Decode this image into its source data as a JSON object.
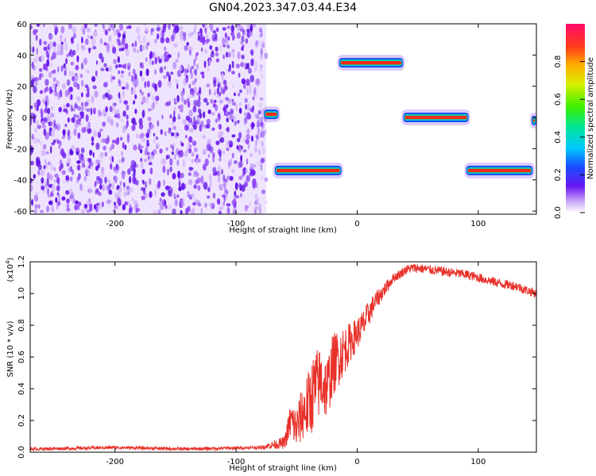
{
  "title": "GN04.2023.347.03.44.E34",
  "colors": {
    "snr_line": "#e8312a",
    "noise": "#7a1cf0",
    "axis": "#000000"
  },
  "chart_data": [
    {
      "type": "heatmap",
      "title": "GN04.2023.347.03.44.E34",
      "xlabel": "Height of straight line (km)",
      "ylabel": "Frequency (Hz)",
      "xlim": [
        -270,
        148
      ],
      "ylim": [
        -62,
        60
      ],
      "xticks": [
        -200,
        -100,
        0,
        100
      ],
      "yticks": [
        -60,
        -40,
        -20,
        0,
        20,
        40,
        60
      ],
      "noise_region_x": [
        -270,
        -75
      ],
      "bands": [
        {
          "x": [
            -77,
            -65
          ],
          "y": 2
        },
        {
          "x": [
            -68,
            -13
          ],
          "y": -34
        },
        {
          "x": [
            -15,
            38
          ],
          "y": 35
        },
        {
          "x": [
            38,
            92
          ],
          "y": 0
        },
        {
          "x": [
            90,
            145
          ],
          "y": -34
        },
        {
          "x": [
            144,
            148
          ],
          "y": -2
        }
      ],
      "colorbar": {
        "label": "Normalized spectral amplitude",
        "range": [
          0,
          1
        ],
        "ticks": [
          "0.0",
          "0.2",
          "0.4",
          "0.6",
          "0.8"
        ]
      }
    },
    {
      "type": "line",
      "xlabel": "Height of straight line (km)",
      "ylabel": "SNR (10 * v/v)",
      "scale_label": "(x10",
      "scale_exp": "4",
      "xlim": [
        -270,
        148
      ],
      "ylim": [
        0,
        1.2
      ],
      "xticks": [
        -200,
        -100,
        0,
        100
      ],
      "yticks": [
        "0.0",
        "0.2",
        "0.4",
        "0.6",
        "0.8",
        "1.0",
        "1.2"
      ],
      "series": [
        {
          "x": [
            -270,
            -230,
            -200,
            -170,
            -140,
            -110,
            -80,
            -60,
            -55,
            -50,
            -45,
            -40,
            -35,
            -30,
            -25,
            -20,
            -15,
            -10,
            -5,
            0,
            5,
            10,
            15,
            20,
            25,
            30,
            35,
            40,
            45,
            50,
            60,
            70,
            80,
            90,
            100,
            110,
            120,
            130,
            140,
            148
          ],
          "y": [
            0.02,
            0.025,
            0.03,
            0.025,
            0.02,
            0.025,
            0.03,
            0.06,
            0.2,
            0.15,
            0.25,
            0.3,
            0.4,
            0.45,
            0.4,
            0.55,
            0.6,
            0.65,
            0.7,
            0.75,
            0.8,
            0.88,
            0.95,
            1.0,
            1.05,
            1.1,
            1.12,
            1.15,
            1.16,
            1.16,
            1.15,
            1.14,
            1.13,
            1.12,
            1.1,
            1.08,
            1.06,
            1.05,
            1.02,
            1.0
          ],
          "noise": [
            0.01,
            0.01,
            0.01,
            0.01,
            0.01,
            0.01,
            0.01,
            0.04,
            0.12,
            0.14,
            0.18,
            0.22,
            0.25,
            0.22,
            0.2,
            0.2,
            0.18,
            0.15,
            0.12,
            0.1,
            0.1,
            0.08,
            0.06,
            0.05,
            0.04,
            0.03,
            0.03,
            0.03,
            0.03,
            0.03,
            0.03,
            0.03,
            0.03,
            0.03,
            0.03,
            0.03,
            0.03,
            0.03,
            0.03,
            0.03
          ]
        }
      ]
    }
  ]
}
